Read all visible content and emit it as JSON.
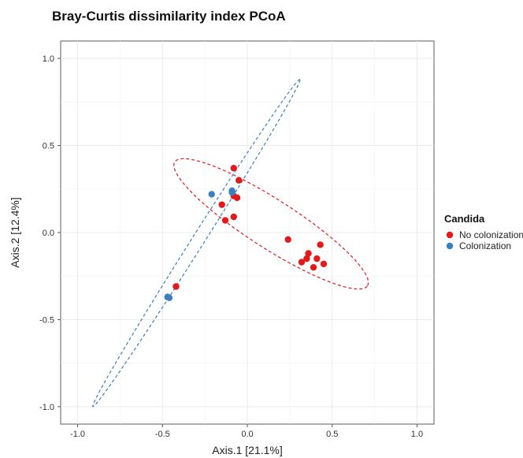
{
  "chart_data": {
    "type": "scatter",
    "title": "Bray-Curtis dissimilarity index PCoA",
    "xlabel": "Axis.1   [21.1%]",
    "ylabel": "Axis.2   [12.4%]",
    "xlim": [
      -1.1,
      1.1
    ],
    "ylim": [
      -1.1,
      1.1
    ],
    "x_ticks": [
      -1.0,
      -0.5,
      0.0,
      0.5,
      1.0
    ],
    "x_tick_labels": [
      "-1.0",
      "-0.5",
      "0.0",
      "0.5",
      "1.0"
    ],
    "y_ticks": [
      -1.0,
      -0.5,
      0.0,
      0.5,
      1.0
    ],
    "y_tick_labels": [
      "-1.0",
      "-0.5",
      "0.0",
      "0.5",
      "1.0"
    ],
    "grid": true,
    "legend": {
      "title": "Candida",
      "position": "right"
    },
    "series": [
      {
        "name": "No colonization",
        "color": "#e31a1c",
        "points": [
          {
            "x": -0.08,
            "y": 0.37
          },
          {
            "x": -0.05,
            "y": 0.3
          },
          {
            "x": -0.08,
            "y": 0.21
          },
          {
            "x": -0.06,
            "y": 0.2
          },
          {
            "x": -0.15,
            "y": 0.16
          },
          {
            "x": -0.08,
            "y": 0.09
          },
          {
            "x": -0.13,
            "y": 0.07
          },
          {
            "x": -0.42,
            "y": -0.31
          },
          {
            "x": 0.24,
            "y": -0.04
          },
          {
            "x": 0.43,
            "y": -0.07
          },
          {
            "x": 0.36,
            "y": -0.12
          },
          {
            "x": 0.35,
            "y": -0.15
          },
          {
            "x": 0.41,
            "y": -0.15
          },
          {
            "x": 0.32,
            "y": -0.17
          },
          {
            "x": 0.45,
            "y": -0.18
          },
          {
            "x": 0.39,
            "y": -0.2
          }
        ]
      },
      {
        "name": "Colonization",
        "color": "#3a7fbe",
        "points": [
          {
            "x": -0.21,
            "y": 0.22
          },
          {
            "x": -0.09,
            "y": 0.24
          },
          {
            "x": -0.09,
            "y": 0.23
          },
          {
            "x": -0.47,
            "y": -0.37
          },
          {
            "x": -0.46,
            "y": -0.375
          }
        ]
      }
    ],
    "ellipses": [
      {
        "series": "No colonization",
        "color": "#e31a1c",
        "center": [
          0.14,
          0.05
        ],
        "semi_major": 0.67,
        "semi_minor": 0.14,
        "angle_deg": -32
      },
      {
        "series": "Colonization",
        "color": "#3a7fbe",
        "center": [
          -0.3,
          -0.06
        ],
        "semi_major": 1.12,
        "semi_minor": 0.036,
        "angle_deg": 57
      }
    ]
  }
}
